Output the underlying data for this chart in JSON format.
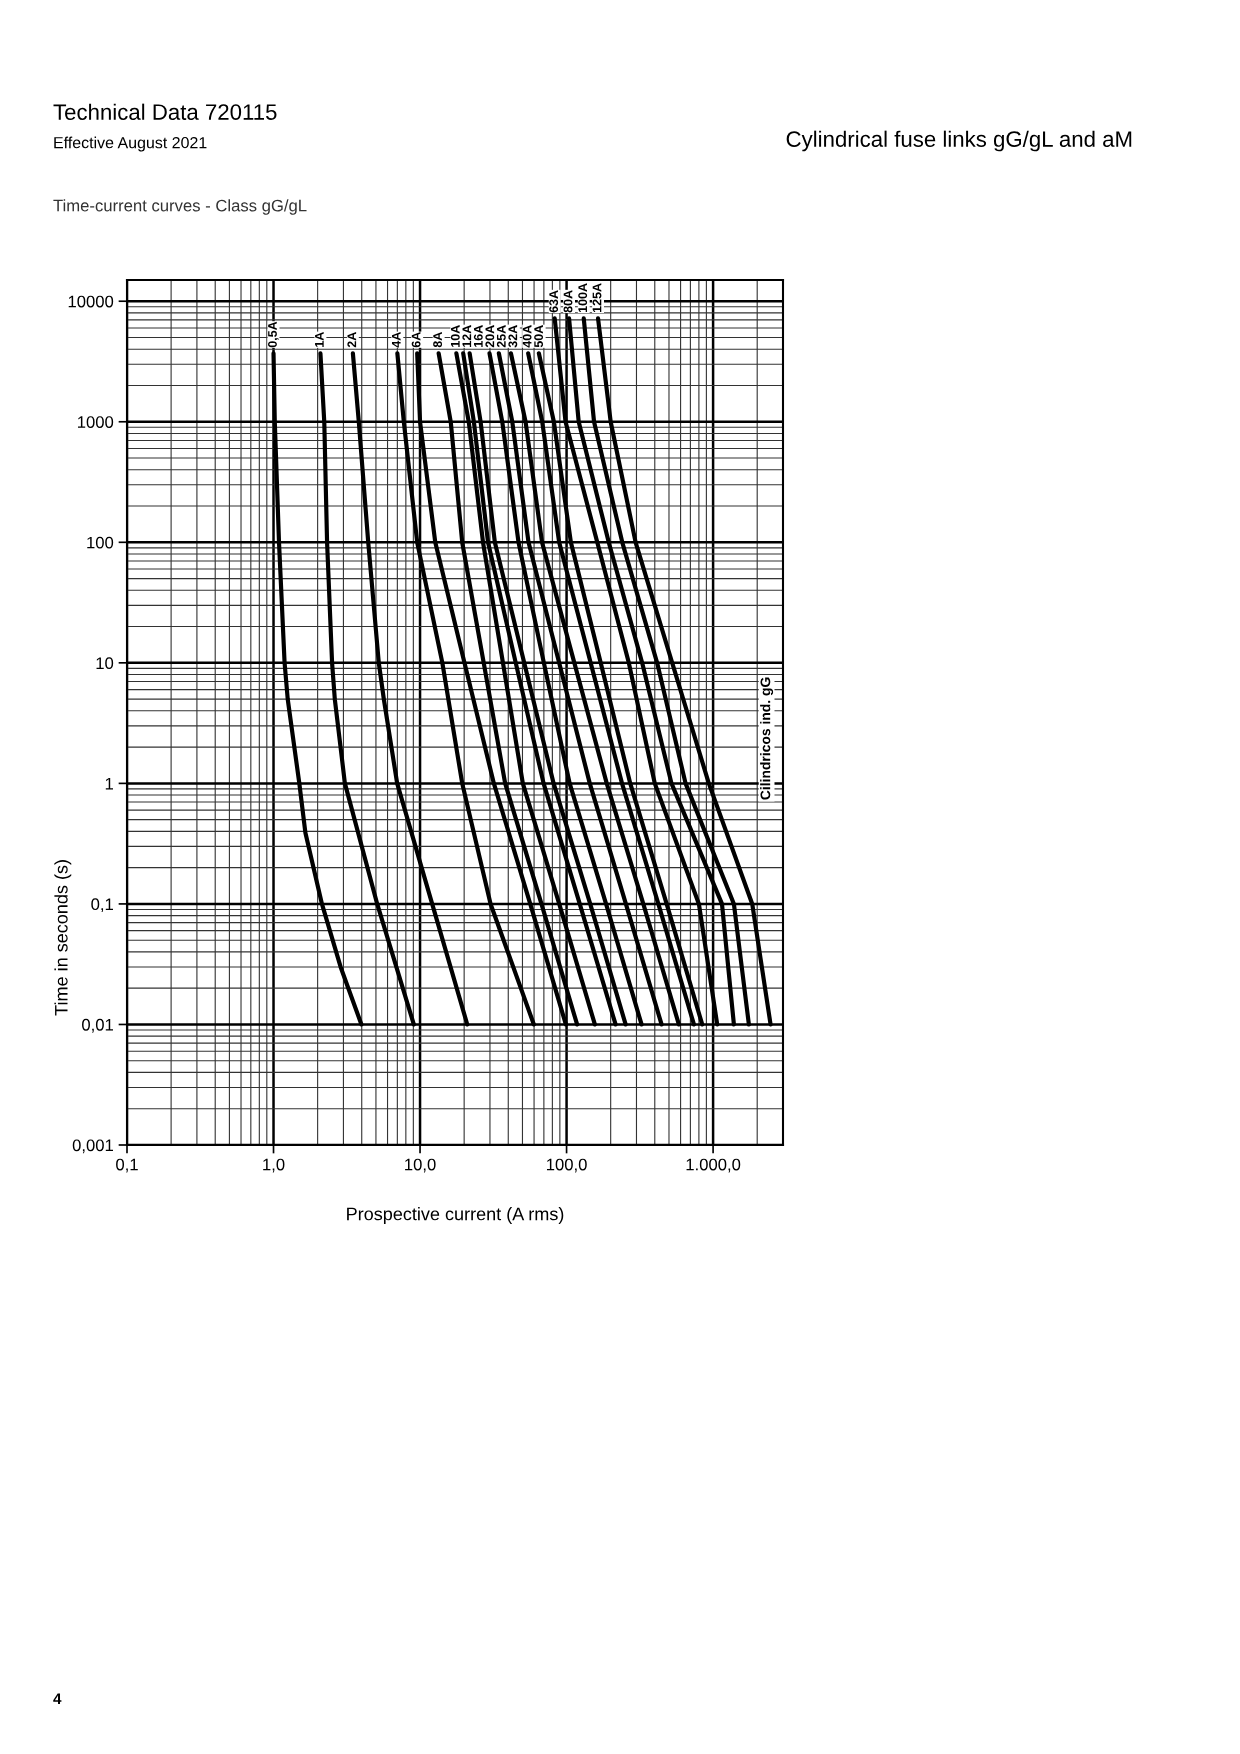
{
  "chart_data": {
    "type": "line",
    "title": "Technical Data 720115",
    "subtitle": "Time-current curves - Class gG/gL",
    "xlabel": "Prospective current (A rms)",
    "ylabel": "Time in seconds (s)",
    "annotations": [
      "Cilindricos ind. gG",
      "Effective August 2021",
      "Cylindrical fuse links gG/gL and aM",
      "4"
    ],
    "log": "xy",
    "grid": true,
    "legend": false,
    "marker": "none",
    "line_style": "solid",
    "xlim": [
      0.1,
      3000
    ],
    "ylim": [
      0.001,
      15000
    ],
    "xticks": [
      {
        "value": 0.1,
        "label": "0,1"
      },
      {
        "value": 1,
        "label": "1,0"
      },
      {
        "value": 10,
        "label": "10,0"
      },
      {
        "value": 100,
        "label": "100,0"
      },
      {
        "value": 1000,
        "label": "1.000,0"
      }
    ],
    "yticks": [
      {
        "value": 0.001,
        "label": "0,001"
      },
      {
        "value": 0.01,
        "label": "0,01"
      },
      {
        "value": 0.1,
        "label": "0,1"
      },
      1,
      10,
      100,
      1000,
      10000
    ],
    "series": [
      {
        "name": "0,5A",
        "color": "#000000",
        "x": [
          1.0,
          1.02,
          1.09,
          1.19,
          1.25,
          1.5,
          1.65,
          2.14,
          2.87,
          3.98
        ],
        "values": [
          3700,
          1000,
          100,
          10,
          5,
          1,
          0.39,
          0.1,
          0.03,
          0.01
        ]
      },
      {
        "name": "1A",
        "color": "#000000",
        "x": [
          2.09,
          2.22,
          2.32,
          2.51,
          2.62,
          3.07,
          5.1,
          9.07
        ],
        "values": [
          3700,
          1000,
          100,
          10,
          5,
          1,
          0.1,
          0.01
        ]
      },
      {
        "name": "2A",
        "color": "#000000",
        "x": [
          3.48,
          3.82,
          4.43,
          5.23,
          5.66,
          6.98,
          12.1,
          21
        ],
        "values": [
          3700,
          1000,
          100,
          10,
          5,
          1,
          0.1,
          0.01
        ]
      },
      {
        "name": "4A",
        "color": "#000000",
        "x": [
          7.0,
          7.75,
          9.56,
          14.2,
          19.4,
          30.3,
          59.8
        ],
        "values": [
          3700,
          1000,
          100,
          10,
          1,
          0.1,
          0.01
        ]
      },
      {
        "name": "6A",
        "color": "#000000",
        "x": [
          9.56,
          10,
          12.7,
          20.1,
          31.9,
          56.5,
          98.9
        ],
        "values": [
          3700,
          1000,
          100,
          10,
          1,
          0.1,
          0.01
        ]
      },
      {
        "name": "8A",
        "color": "#000000",
        "x": [
          13.4,
          16.2,
          19.4,
          27.2,
          38.1,
          67.4,
          118
        ],
        "values": [
          3700,
          1000,
          100,
          10,
          1,
          0.1,
          0.01
        ]
      },
      {
        "name": "10A",
        "color": "#000000",
        "x": [
          17.7,
          21.5,
          26.9,
          36.8,
          50.3,
          89.1,
          156
        ],
        "values": [
          3700,
          1000,
          100,
          10,
          1,
          0.1,
          0.01
        ]
      },
      {
        "name": "12A",
        "color": "#000000",
        "x": [
          19.7,
          23.3,
          29.1,
          45.0,
          69.7,
          123,
          216
        ],
        "values": [
          3700,
          1000,
          100,
          10,
          1,
          0.1,
          0.01
        ]
      },
      {
        "name": "16A",
        "color": "#000000",
        "x": [
          21.8,
          25.9,
          32.4,
          51.4,
          81.6,
          145,
          253
        ],
        "values": [
          3700,
          1000,
          100,
          10,
          1,
          0.1,
          0.01
        ]
      },
      {
        "name": "20A",
        "color": "#000000",
        "x": [
          29.8,
          36.4,
          47,
          70,
          105,
          186,
          325
        ],
        "values": [
          3700,
          1000,
          100,
          10,
          1,
          0.1,
          0.01
        ]
      },
      {
        "name": "25A",
        "color": "#000000",
        "x": [
          34.5,
          42.6,
          55,
          89,
          144,
          254,
          445
        ],
        "values": [
          3700,
          1000,
          100,
          10,
          1,
          0.1,
          0.01
        ]
      },
      {
        "name": "32A",
        "color": "#000000",
        "x": [
          41.7,
          52.5,
          68,
          113,
          188,
          334,
          584
        ],
        "values": [
          3700,
          1000,
          100,
          10,
          1,
          0.1,
          0.01
        ]
      },
      {
        "name": "40A",
        "color": "#000000",
        "x": [
          54.7,
          68.2,
          89,
          146,
          239,
          423,
          740
        ],
        "values": [
          3700,
          1000,
          100,
          10,
          1,
          0.1,
          0.01
        ]
      },
      {
        "name": "50A",
        "color": "#000000",
        "x": [
          64.7,
          81.9,
          107,
          171,
          272,
          482,
          843
        ],
        "values": [
          3700,
          1000,
          100,
          10,
          1,
          0.1,
          0.01
        ]
      },
      {
        "name": "63A",
        "color": "#000000",
        "x": [
          83,
          98.4,
          162,
          266,
          400,
          800,
          1067
        ],
        "values": [
          7200,
          1000,
          100,
          10,
          1,
          0.1,
          0.01
        ]
      },
      {
        "name": "80A",
        "color": "#000000",
        "x": [
          104,
          121,
          194,
          328,
          520,
          1150,
          1387
        ],
        "values": [
          7200,
          1000,
          100,
          10,
          1,
          0.1,
          0.01
        ]
      },
      {
        "name": "100A",
        "color": "#000000",
        "x": [
          131,
          154,
          240,
          415,
          649,
          1387,
          1755
        ],
        "values": [
          7200,
          1000,
          100,
          10,
          1,
          0.1,
          0.01
        ]
      },
      {
        "name": "125A",
        "color": "#000000",
        "x": [
          164,
          200,
          296,
          526,
          935,
          1850,
          2468
        ],
        "values": [
          7200,
          1000,
          100,
          10,
          1,
          0.1,
          0.01
        ]
      }
    ]
  }
}
